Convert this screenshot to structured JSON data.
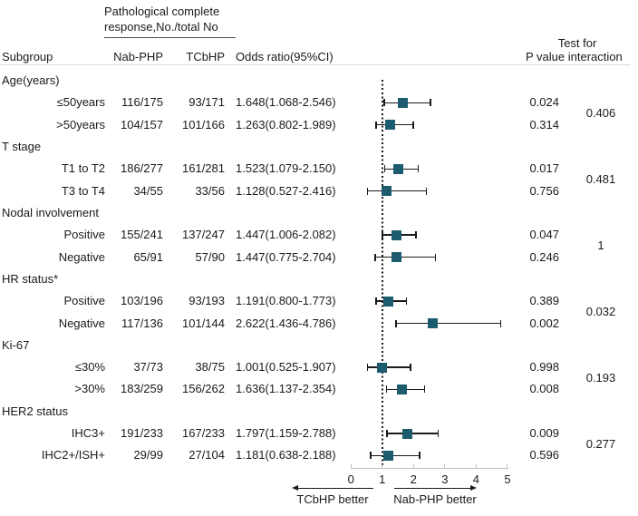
{
  "header": {
    "pcr_line1": "Pathological complete",
    "pcr_line2": "response,No./total No",
    "subgroup": "Subgroup",
    "nab": "Nab-PHP",
    "tcbhp": "TCbHP",
    "odds_ratio": "Odds ratio(95%CI)",
    "test_for_line1": "Test for",
    "test_for_line2": "P value interaction"
  },
  "colors": {
    "marker": "#1d5b6e",
    "ci_line": "#1a1a1a",
    "axis_line": "#bfbfbf",
    "header_rule": "#d9d9d9",
    "text": "#1a1a1a"
  },
  "chart_data": {
    "type": "scatter",
    "subtype": "forest",
    "axis": {
      "min": 0,
      "max": 5,
      "ticks": [
        "0",
        "1",
        "2",
        "3",
        "4",
        "5"
      ],
      "reference_value": 1,
      "left_arrow_label": "TCbHP better",
      "right_arrow_label": "Nab-PHP better"
    },
    "groups": [
      {
        "label": "Age(years)",
        "interaction_p": "0.406",
        "rows": [
          {
            "label": "≤50years",
            "nab": "116/175",
            "tcbhp": "93/171",
            "or_text": "1.648(1.068-2.546)",
            "or": 1.648,
            "ci_low": 1.068,
            "ci_high": 2.546,
            "p": "0.024"
          },
          {
            "label": ">50years",
            "nab": "104/157",
            "tcbhp": "101/166",
            "or_text": "1.263(0.802-1.989)",
            "or": 1.263,
            "ci_low": 0.802,
            "ci_high": 1.989,
            "p": "0.314"
          }
        ]
      },
      {
        "label": "T stage",
        "interaction_p": "0.481",
        "rows": [
          {
            "label": "T1 to T2",
            "nab": "186/277",
            "tcbhp": "161/281",
            "or_text": "1.523(1.079-2.150)",
            "or": 1.523,
            "ci_low": 1.079,
            "ci_high": 2.15,
            "p": "0.017"
          },
          {
            "label": "T3 to T4",
            "nab": "34/55",
            "tcbhp": "33/56",
            "or_text": "1.128(0.527-2.416)",
            "or": 1.128,
            "ci_low": 0.527,
            "ci_high": 2.416,
            "p": "0.756"
          }
        ]
      },
      {
        "label": "Nodal involvement",
        "interaction_p": "1",
        "rows": [
          {
            "label": "Positive",
            "nab": "155/241",
            "tcbhp": "137/247",
            "or_text": "1.447(1.006-2.082)",
            "or": 1.447,
            "ci_low": 1.006,
            "ci_high": 2.082,
            "p": "0.047"
          },
          {
            "label": "Negative",
            "nab": "65/91",
            "tcbhp": "57/90",
            "or_text": "1.447(0.775-2.704)",
            "or": 1.447,
            "ci_low": 0.775,
            "ci_high": 2.704,
            "p": "0.246"
          }
        ]
      },
      {
        "label": "HR status*",
        "interaction_p": "0.032",
        "rows": [
          {
            "label": "Positive",
            "nab": "103/196",
            "tcbhp": "93/193",
            "or_text": "1.191(0.800-1.773)",
            "or": 1.191,
            "ci_low": 0.8,
            "ci_high": 1.773,
            "p": "0.389"
          },
          {
            "label": "Negative",
            "nab": "117/136",
            "tcbhp": "101/144",
            "or_text": "2.622(1.436-4.786)",
            "or": 2.622,
            "ci_low": 1.436,
            "ci_high": 4.786,
            "p": "0.002"
          }
        ]
      },
      {
        "label": "Ki-67",
        "interaction_p": "0.193",
        "rows": [
          {
            "label": "≤30%",
            "nab": "37/73",
            "tcbhp": "38/75",
            "or_text": "1.001(0.525-1.907)",
            "or": 1.001,
            "ci_low": 0.525,
            "ci_high": 1.907,
            "p": "0.998"
          },
          {
            "label": ">30%",
            "nab": "183/259",
            "tcbhp": "156/262",
            "or_text": "1.636(1.137-2.354)",
            "or": 1.636,
            "ci_low": 1.137,
            "ci_high": 2.354,
            "p": "0.008"
          }
        ]
      },
      {
        "label": "HER2 status",
        "interaction_p": "0.277",
        "rows": [
          {
            "label": "IHC3+",
            "nab": "191/233",
            "tcbhp": "167/233",
            "or_text": "1.797(1.159-2.788)",
            "or": 1.797,
            "ci_low": 1.159,
            "ci_high": 2.788,
            "p": "0.009"
          },
          {
            "label": "IHC2+/ISH+",
            "nab": "29/99",
            "tcbhp": "27/104",
            "or_text": "1.181(0.638-2.188)",
            "or": 1.181,
            "ci_low": 0.638,
            "ci_high": 2.188,
            "p": "0.596"
          }
        ]
      }
    ]
  }
}
